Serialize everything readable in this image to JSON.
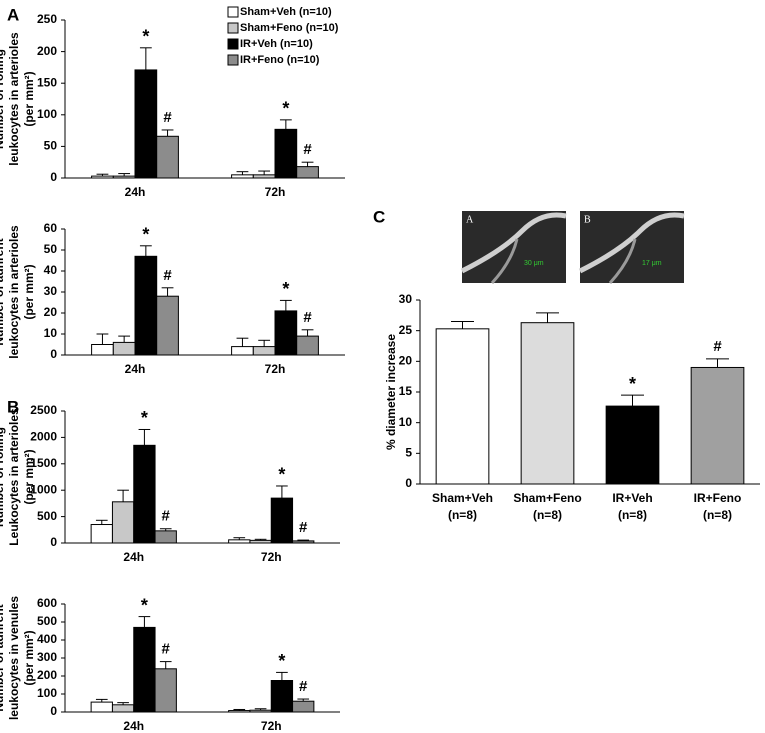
{
  "chart_data": [
    {
      "type": "bar",
      "panel": "A",
      "ylabel": [
        "Number of rolling",
        "leukocytes in arterioles",
        "(per mm²)"
      ],
      "categories": [
        "24h",
        "72h"
      ],
      "ylim": [
        0,
        250
      ],
      "yticks": [
        0,
        50,
        100,
        150,
        200,
        250
      ],
      "legend": true,
      "series": [
        {
          "name": "Sham+Veh (n=10)",
          "color": "#ffffff",
          "values": [
            3,
            5
          ],
          "errors": [
            3,
            5
          ],
          "markers": [
            null,
            null
          ]
        },
        {
          "name": "Sham+Feno (n=10)",
          "color": "#c8c8c8",
          "values": [
            3,
            5
          ],
          "errors": [
            4,
            6
          ],
          "markers": [
            null,
            null
          ]
        },
        {
          "name": "IR+Veh (n=10)",
          "color": "#000000",
          "values": [
            171,
            77
          ],
          "errors": [
            35,
            15
          ],
          "markers": [
            "*",
            "*"
          ]
        },
        {
          "name": "IR+Feno (n=10)",
          "color": "#8c8c8c",
          "values": [
            66,
            18
          ],
          "errors": [
            10,
            7
          ],
          "markers": [
            "#",
            "#"
          ]
        }
      ]
    },
    {
      "type": "bar",
      "ylabel": [
        "Number of adhrent",
        "leukocytes in arterioles",
        "(per mm²)"
      ],
      "categories": [
        "24h",
        "72h"
      ],
      "ylim": [
        0,
        60
      ],
      "yticks": [
        0,
        10,
        20,
        30,
        40,
        50,
        60
      ],
      "legend": false,
      "series": [
        {
          "color": "#ffffff",
          "values": [
            5,
            4
          ],
          "errors": [
            5,
            4
          ],
          "markers": [
            null,
            null
          ]
        },
        {
          "color": "#c8c8c8",
          "values": [
            6,
            4
          ],
          "errors": [
            3,
            3
          ],
          "markers": [
            null,
            null
          ]
        },
        {
          "color": "#000000",
          "values": [
            47,
            21
          ],
          "errors": [
            5,
            5
          ],
          "markers": [
            "*",
            "*"
          ]
        },
        {
          "color": "#8c8c8c",
          "values": [
            28,
            9
          ],
          "errors": [
            4,
            3
          ],
          "markers": [
            "#",
            "#"
          ]
        }
      ]
    },
    {
      "type": "bar",
      "panel": "B",
      "ylabel": [
        "Number of rolling",
        "Leukocytes in arterioles",
        "(per mm²)"
      ],
      "categories": [
        "24h",
        "72h"
      ],
      "ylim": [
        0,
        2500
      ],
      "yticks": [
        0,
        500,
        1000,
        1500,
        2000,
        2500
      ],
      "legend": false,
      "series": [
        {
          "color": "#ffffff",
          "values": [
            350,
            60
          ],
          "errors": [
            80,
            40
          ],
          "markers": [
            null,
            null
          ]
        },
        {
          "color": "#c8c8c8",
          "values": [
            780,
            50
          ],
          "errors": [
            220,
            20
          ],
          "markers": [
            null,
            null
          ]
        },
        {
          "color": "#000000",
          "values": [
            1850,
            850
          ],
          "errors": [
            300,
            230
          ],
          "markers": [
            "*",
            "*"
          ]
        },
        {
          "color": "#8c8c8c",
          "values": [
            230,
            40
          ],
          "errors": [
            40,
            15
          ],
          "markers": [
            "#",
            "#"
          ]
        }
      ]
    },
    {
      "type": "bar",
      "ylabel": [
        "Number of adhrent",
        "leukocytes in venules",
        "(per mm²)"
      ],
      "categories": [
        "24h",
        "72h"
      ],
      "ylim": [
        0,
        600
      ],
      "yticks": [
        0,
        100,
        200,
        300,
        400,
        500,
        600
      ],
      "legend": false,
      "series": [
        {
          "color": "#ffffff",
          "values": [
            55,
            8
          ],
          "errors": [
            15,
            6
          ],
          "markers": [
            null,
            null
          ]
        },
        {
          "color": "#c8c8c8",
          "values": [
            40,
            10
          ],
          "errors": [
            12,
            8
          ],
          "markers": [
            null,
            null
          ]
        },
        {
          "color": "#000000",
          "values": [
            470,
            175
          ],
          "errors": [
            60,
            45
          ],
          "markers": [
            "*",
            "*"
          ]
        },
        {
          "color": "#8c8c8c",
          "values": [
            240,
            60
          ],
          "errors": [
            40,
            12
          ],
          "markers": [
            "#",
            "#"
          ]
        }
      ]
    },
    {
      "type": "bar",
      "panel": "C",
      "ylabel": [
        "% diameter increase"
      ],
      "categories": [
        "Sham+Veh",
        "Sham+Feno",
        "IR+Veh",
        "IR+Feno"
      ],
      "category_sublabels": [
        "(n=8)",
        "(n=8)",
        "(n=8)",
        "(n=8)"
      ],
      "ylim": [
        0,
        30
      ],
      "yticks": [
        0,
        5,
        10,
        15,
        20,
        25,
        30
      ],
      "legend": false,
      "series": [
        {
          "colors": [
            "#ffffff",
            "#dcdcdc",
            "#000000",
            "#a0a0a0"
          ],
          "values": [
            25.3,
            26.3,
            12.7,
            19
          ],
          "errors": [
            1.2,
            1.6,
            1.8,
            1.4
          ],
          "markers": [
            null,
            null,
            "*",
            "#"
          ]
        }
      ],
      "inset_images": [
        {
          "label": "A",
          "scale": "30 μm"
        },
        {
          "label": "B",
          "scale": "17 μm"
        }
      ]
    }
  ]
}
